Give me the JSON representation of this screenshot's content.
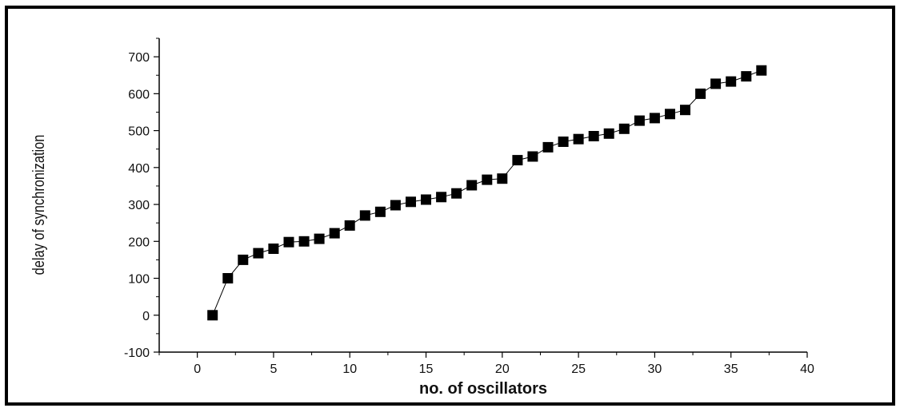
{
  "chart_data": {
    "type": "scatter",
    "title": "",
    "xlabel": "no. of oscillators",
    "ylabel": "delay of synchronization",
    "xlim": [
      -2.5,
      40
    ],
    "ylim": [
      -100,
      750
    ],
    "xticks": [
      0,
      5,
      10,
      15,
      20,
      25,
      30,
      35,
      40
    ],
    "yticks": [
      -100,
      0,
      100,
      200,
      300,
      400,
      500,
      600,
      700
    ],
    "grid": false,
    "legend": "none",
    "marker": "square",
    "connected": true,
    "color": "#000000",
    "series": [
      {
        "x": [
          1,
          2,
          3,
          4,
          5,
          6,
          7,
          8,
          9,
          10,
          11,
          12,
          13,
          14,
          15,
          16,
          17,
          18,
          19,
          20,
          21,
          22,
          23,
          24,
          25,
          26,
          27,
          28,
          29,
          30,
          31,
          32,
          33,
          34,
          35,
          36,
          37
        ],
        "values": [
          0,
          100,
          150,
          168,
          180,
          198,
          200,
          207,
          222,
          243,
          270,
          280,
          298,
          307,
          313,
          320,
          330,
          352,
          367,
          370,
          420,
          430,
          455,
          470,
          477,
          485,
          492,
          505,
          527,
          534,
          545,
          556,
          600,
          627,
          633,
          647,
          663
        ]
      }
    ]
  }
}
